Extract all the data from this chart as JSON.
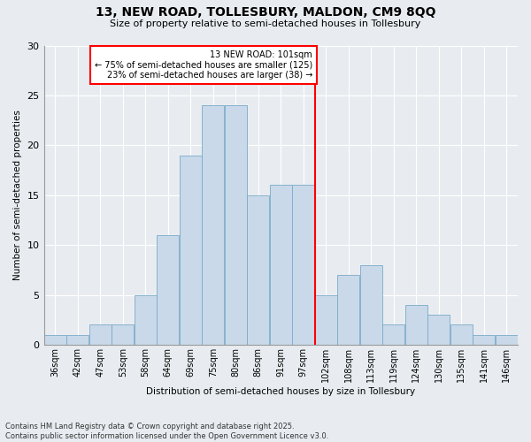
{
  "title1": "13, NEW ROAD, TOLLESBURY, MALDON, CM9 8QQ",
  "title2": "Size of property relative to semi-detached houses in Tollesbury",
  "xlabel": "Distribution of semi-detached houses by size in Tollesbury",
  "ylabel": "Number of semi-detached properties",
  "bar_labels": [
    "36sqm",
    "42sqm",
    "47sqm",
    "53sqm",
    "58sqm",
    "64sqm",
    "69sqm",
    "75sqm",
    "80sqm",
    "86sqm",
    "91sqm",
    "97sqm",
    "102sqm",
    "108sqm",
    "113sqm",
    "119sqm",
    "124sqm",
    "130sqm",
    "135sqm",
    "141sqm",
    "146sqm"
  ],
  "bar_values": [
    1,
    1,
    2,
    2,
    5,
    11,
    19,
    24,
    24,
    15,
    16,
    16,
    5,
    7,
    8,
    2,
    4,
    3,
    2,
    1,
    1
  ],
  "bar_color": "#c9d9ea",
  "bar_edge_color": "#7aaac8",
  "annotation_title": "13 NEW ROAD: 101sqm",
  "annotation_line1": "← 75% of semi-detached houses are smaller (125)",
  "annotation_line2": "23% of semi-detached houses are larger (38) →",
  "ylim": [
    0,
    30
  ],
  "yticks": [
    0,
    5,
    10,
    15,
    20,
    25,
    30
  ],
  "footer1": "Contains HM Land Registry data © Crown copyright and database right 2025.",
  "footer2": "Contains public sector information licensed under the Open Government Licence v3.0.",
  "bg_color": "#e8ecf0",
  "grid_color": "#ffffff"
}
